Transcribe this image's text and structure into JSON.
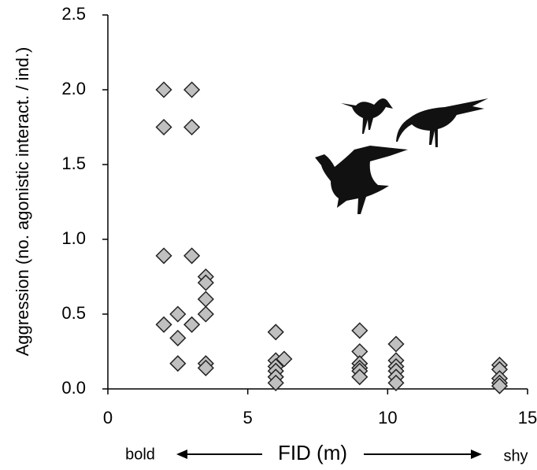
{
  "chart_data": {
    "type": "scatter",
    "y_label": "Aggression (no. agonistic interact. / ind.)",
    "x_label": "FID (m)",
    "x_left_note": "bold",
    "x_right_note": "shy",
    "xlim": [
      0,
      15
    ],
    "ylim": [
      0,
      2.5
    ],
    "xticks": [
      0,
      5,
      10,
      15
    ],
    "yticks": [
      {
        "value": 0,
        "label": "0.0"
      },
      0.5,
      {
        "value": 1,
        "label": "1.0"
      },
      1.5,
      {
        "value": 2,
        "label": "2.0"
      },
      2.5
    ],
    "color": "#c0c0c0",
    "x": [
      2,
      3,
      2,
      3,
      2,
      3,
      3.5,
      3.5,
      3.5,
      3.5,
      2.5,
      2,
      3,
      2.5,
      2.5,
      3.5,
      3.5,
      6,
      6,
      6,
      6,
      6,
      6,
      6.3,
      9,
      9,
      9,
      9,
      9,
      9,
      10.3,
      10.3,
      10.3,
      10.3,
      10.3,
      10.3,
      14,
      14,
      14,
      14,
      14
    ],
    "values": [
      2.0,
      2.0,
      1.75,
      1.75,
      0.89,
      0.89,
      0.75,
      0.71,
      0.6,
      0.5,
      0.5,
      0.43,
      0.43,
      0.34,
      0.17,
      0.17,
      0.14,
      0.38,
      0.19,
      0.15,
      0.12,
      0.08,
      0.04,
      0.2,
      0.39,
      0.25,
      0.17,
      0.14,
      0.12,
      0.08,
      0.3,
      0.19,
      0.15,
      0.12,
      0.08,
      0.04,
      0.16,
      0.13,
      0.07,
      0.04,
      0.02
    ]
  }
}
